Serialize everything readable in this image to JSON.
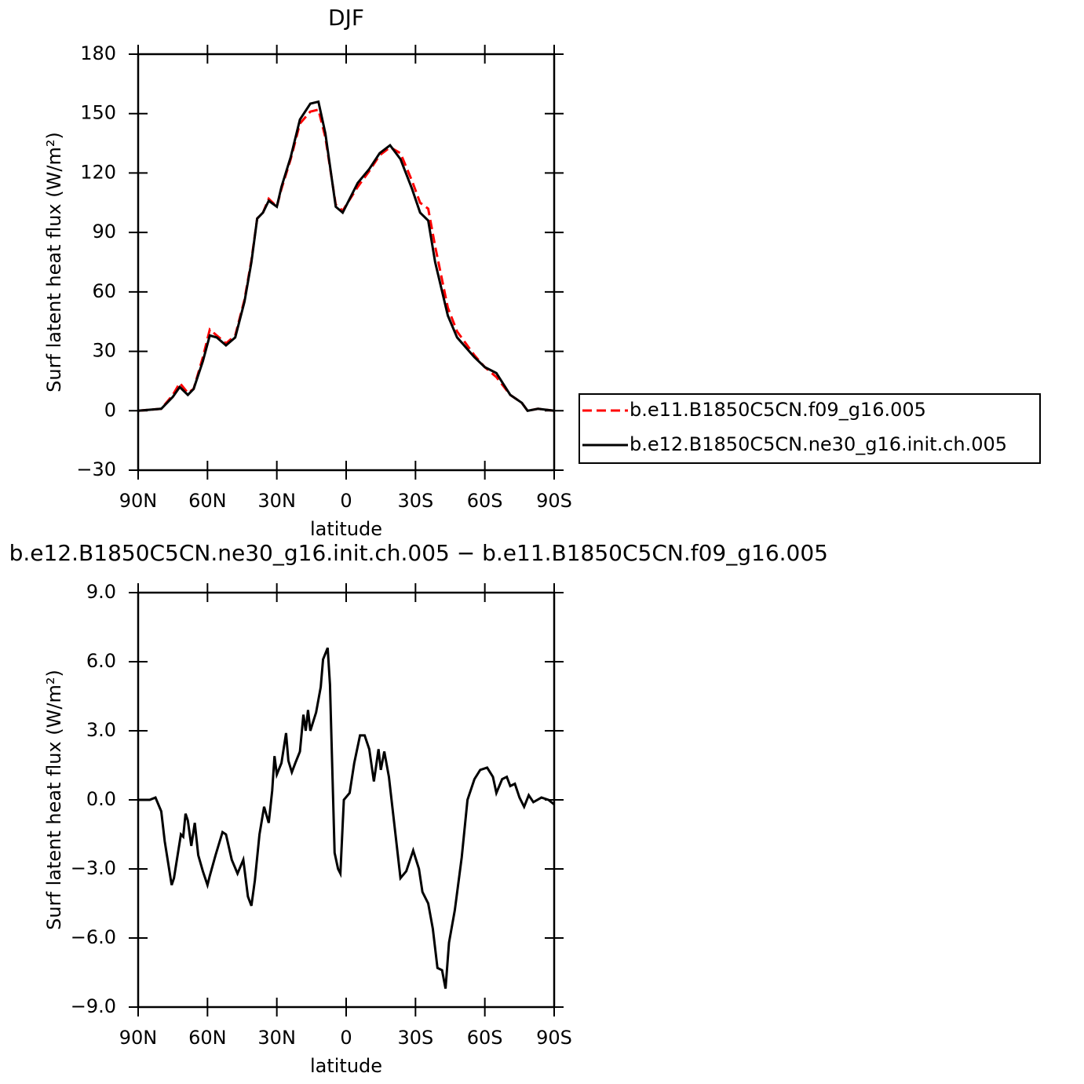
{
  "chart_data": [
    {
      "type": "line",
      "title": "DJF",
      "xlabel": "latitude",
      "ylabel": "Surf latent heat flux (W/m²)",
      "xlim": [
        90,
        -90
      ],
      "xticks": [
        {
          "value": 90,
          "label": "90N"
        },
        {
          "value": 60,
          "label": "60N"
        },
        {
          "value": 30,
          "label": "30N"
        },
        0,
        {
          "value": -30,
          "label": "30S"
        },
        {
          "value": -60,
          "label": "60S"
        },
        {
          "value": -90,
          "label": "90S"
        }
      ],
      "ylim": [
        -30,
        180
      ],
      "yticks": [
        {
          "value": -30,
          "label": "−30"
        },
        0,
        30,
        60,
        90,
        120,
        150,
        180
      ],
      "legend": "right",
      "x": [
        90,
        80,
        75,
        72,
        68.5,
        66,
        62,
        59,
        56,
        52,
        48,
        44,
        41,
        38.5,
        36,
        33.5,
        30,
        28,
        24,
        20,
        15.5,
        12,
        9,
        4.5,
        1.5,
        -5,
        -10,
        -14.5,
        -19,
        -23.5,
        -28.5,
        -32,
        -35.5,
        -38.5,
        -44,
        -48,
        -55.5,
        -60,
        -65,
        -71,
        -76,
        -78.5,
        -83,
        -90
      ],
      "series": [
        {
          "name": "b.e11.B1850C5CN.f09_g16.005",
          "color": "#ff0000",
          "linestyle": "dashed",
          "values": [
            0,
            1,
            8,
            14,
            9,
            11,
            27,
            41,
            38,
            34,
            38,
            56,
            76,
            97,
            100,
            107,
            103,
            112,
            127,
            145,
            151,
            152,
            138,
            104,
            101,
            113,
            121,
            129,
            133,
            130,
            116,
            105,
            102,
            83,
            52,
            40,
            28,
            22,
            17,
            8,
            4,
            0,
            1,
            0
          ]
        },
        {
          "name": "b.e12.B1850C5CN.ne30_g16.init.ch.005",
          "color": "#000000",
          "linestyle": "solid",
          "values": [
            0,
            1,
            7,
            12,
            8,
            11,
            25,
            38,
            37,
            33,
            37,
            55,
            75,
            97,
            100,
            106,
            103,
            113,
            128,
            147,
            155,
            156,
            140,
            103,
            100,
            115,
            122,
            130,
            134,
            127,
            112,
            100,
            96,
            75,
            48,
            37,
            27,
            22,
            19,
            8,
            4,
            0,
            1,
            0
          ]
        }
      ]
    },
    {
      "type": "line",
      "title": "b.e12.B1850C5CN.ne30_g16.init.ch.005 − b.e11.B1850C5CN.f09_g16.005",
      "xlabel": "latitude",
      "ylabel": "Surf latent heat flux (W/m²)",
      "xlim": [
        90,
        -90
      ],
      "xticks": [
        {
          "value": 90,
          "label": "90N"
        },
        {
          "value": 60,
          "label": "60N"
        },
        {
          "value": 30,
          "label": "30N"
        },
        0,
        {
          "value": -30,
          "label": "30S"
        },
        {
          "value": -60,
          "label": "60S"
        },
        {
          "value": -90,
          "label": "90S"
        }
      ],
      "ylim": [
        -9,
        9
      ],
      "yticks": [
        {
          "value": -9,
          "label": "−9.0"
        },
        {
          "value": -6,
          "label": "−6.0"
        },
        {
          "value": -3,
          "label": "−3.0"
        },
        {
          "value": 0,
          "label": "0.0"
        },
        {
          "value": 3,
          "label": "3.0"
        },
        {
          "value": 6,
          "label": "6.0"
        },
        {
          "value": 9,
          "label": "9.0"
        }
      ],
      "x": [
        90,
        85,
        82.5,
        80,
        78.5,
        75.5,
        74.5,
        71.5,
        70.5,
        69.5,
        68.5,
        67,
        65.5,
        64,
        62,
        60,
        59,
        56.5,
        53.5,
        52,
        49.5,
        47,
        44.5,
        42.5,
        41,
        39.5,
        37.5,
        35.5,
        33.5,
        32,
        31,
        30,
        28,
        26,
        25,
        23.5,
        22,
        20,
        18.5,
        17.5,
        16.5,
        15.5,
        13,
        11,
        10,
        8,
        7,
        5,
        3.5,
        2.5,
        1,
        -1.5,
        -3.5,
        -6,
        -8,
        -10,
        -12,
        -14,
        -15,
        -16.5,
        -18.5,
        -21,
        -23.5,
        -26,
        -29,
        -31.5,
        -33,
        -35.5,
        -37.5,
        -39.5,
        -41.5,
        -43,
        -44.5,
        -47,
        -50,
        -52.5,
        -55.5,
        -58,
        -61,
        -63.5,
        -65,
        -67.5,
        -69.5,
        -71,
        -73,
        -75,
        -77,
        -79,
        -81,
        -84.5,
        -87.5,
        -90
      ],
      "series": [
        {
          "name": null,
          "color": "#000000",
          "linestyle": "solid",
          "values": [
            0,
            0,
            0.1,
            -0.5,
            -1.8,
            -3.7,
            -3.4,
            -1.5,
            -1.6,
            -0.6,
            -0.9,
            -2.0,
            -1.0,
            -2.4,
            -3.1,
            -3.7,
            -3.3,
            -2.4,
            -1.4,
            -1.5,
            -2.6,
            -3.2,
            -2.6,
            -4.2,
            -4.6,
            -3.5,
            -1.5,
            -0.3,
            -1.0,
            0.4,
            1.9,
            1.1,
            1.6,
            2.9,
            1.7,
            1.2,
            1.6,
            2.1,
            3.7,
            3.0,
            3.9,
            3.0,
            3.8,
            4.9,
            6.1,
            6.6,
            5.0,
            -2.3,
            -3.0,
            -3.2,
            0.0,
            0.3,
            1.6,
            2.8,
            2.8,
            2.2,
            0.8,
            2.2,
            1.3,
            2.1,
            1.0,
            -1.2,
            -3.4,
            -3.1,
            -2.2,
            -3.0,
            -4.0,
            -4.5,
            -5.6,
            -7.3,
            -7.4,
            -8.2,
            -6.2,
            -4.8,
            -2.5,
            0.0,
            0.9,
            1.3,
            1.4,
            1.0,
            0.3,
            0.9,
            1.0,
            0.6,
            0.7,
            0.1,
            -0.3,
            0.2,
            -0.1,
            0.1,
            0,
            -0.2
          ]
        }
      ]
    }
  ]
}
